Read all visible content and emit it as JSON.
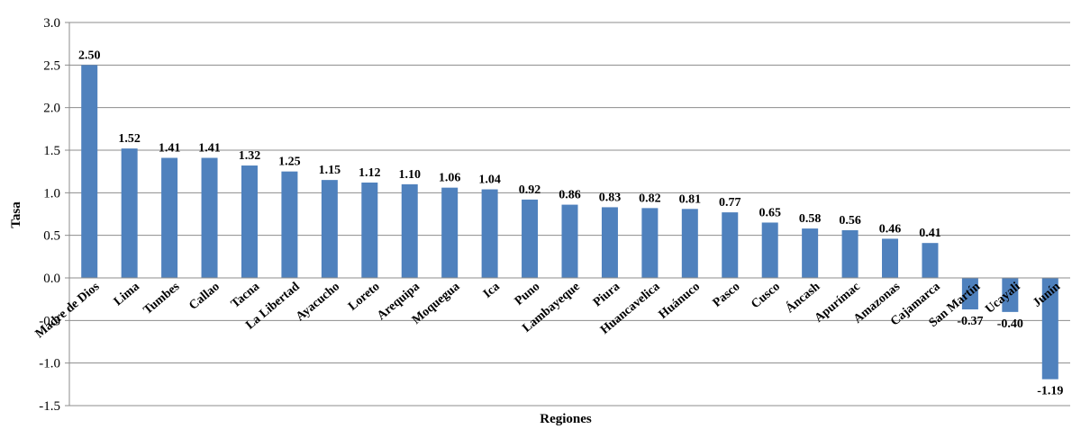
{
  "chart_data": {
    "type": "bar",
    "title": "",
    "xlabel": "Regiones",
    "ylabel": "Tasa",
    "ylim": [
      -1.5,
      3.0
    ],
    "yticks": [
      -1.5,
      -1.0,
      -0.5,
      0.0,
      0.5,
      1.0,
      1.5,
      2.0,
      2.5,
      3.0
    ],
    "ytick_labels": [
      "-1.5",
      "-1.0",
      "-0.5",
      "0.0",
      "0.5",
      "1.0",
      "1.5",
      "2.0",
      "2.5",
      "3.0"
    ],
    "grid": true,
    "legend": "none",
    "bar_color": "#4F81BD",
    "categories": [
      "Madre de Dios",
      "Lima",
      "Tumbes",
      "Callao",
      "Tacna",
      "La Libertad",
      "Ayacucho",
      "Loreto",
      "Arequipa",
      "Moquegua",
      "Ica",
      "Puno",
      "Lambayeque",
      "Piura",
      "Huancavelica",
      "Huánuco",
      "Pasco",
      "Cusco",
      "Áncash",
      "Apurímac",
      "Amazonas",
      "Cajamarca",
      "San Martín",
      "Ucayali",
      "Junín"
    ],
    "values": [
      2.5,
      1.52,
      1.41,
      1.41,
      1.32,
      1.25,
      1.15,
      1.12,
      1.1,
      1.06,
      1.04,
      0.92,
      0.86,
      0.83,
      0.82,
      0.81,
      0.77,
      0.65,
      0.58,
      0.56,
      0.46,
      0.41,
      -0.37,
      -0.4,
      -1.19
    ],
    "value_labels": [
      "2.50",
      "1.52",
      "1.41",
      "1.41",
      "1.32",
      "1.25",
      "1.15",
      "1.12",
      "1.10",
      "1.06",
      "1.04",
      "0.92",
      "0.86",
      "0.83",
      "0.82",
      "0.81",
      "0.77",
      "0.65",
      "0.58",
      "0.56",
      "0.46",
      "0.41",
      "-0.37",
      "-0.40",
      "-1.19"
    ]
  }
}
